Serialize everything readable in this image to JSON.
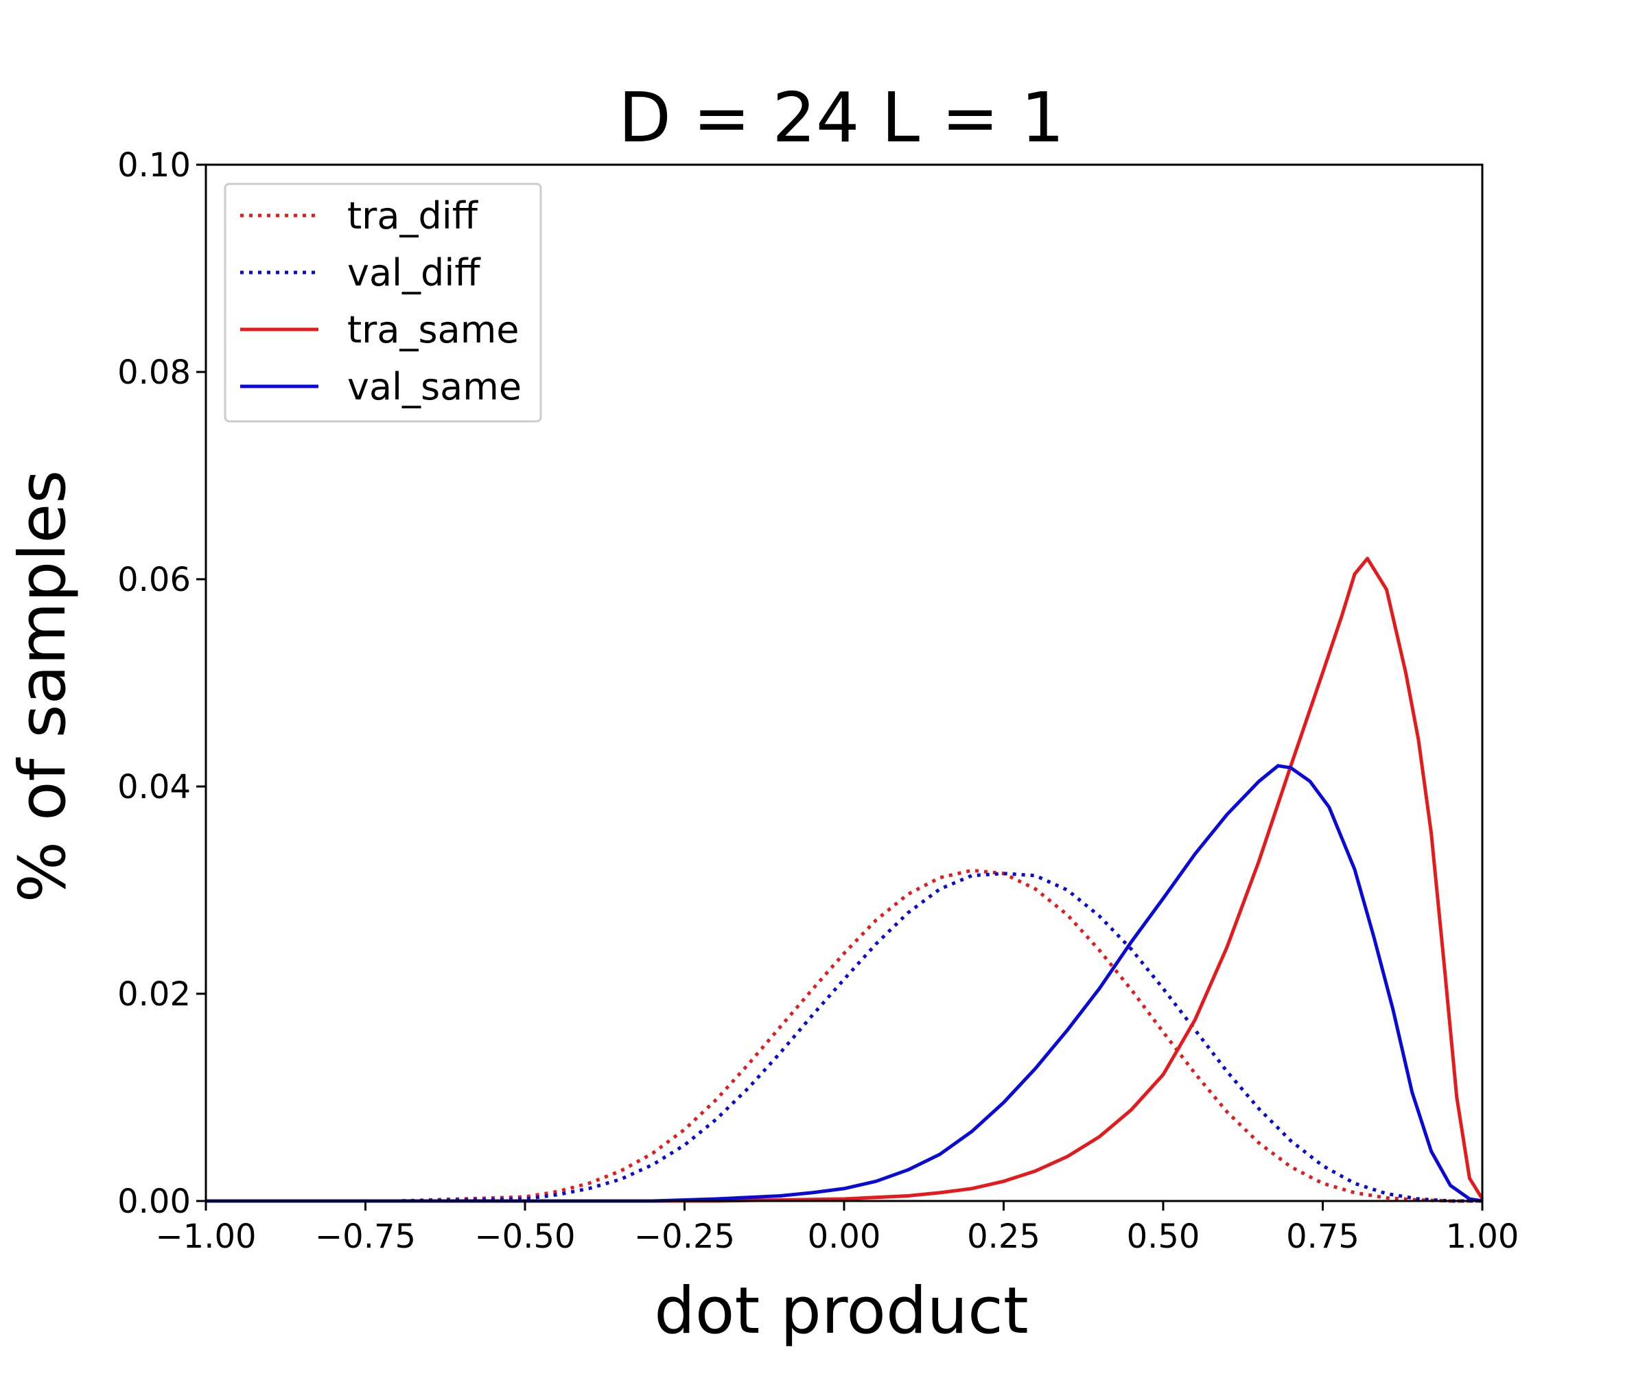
{
  "chart_data": {
    "type": "line",
    "title": "D = 24   L = 1",
    "xlabel": "dot product",
    "ylabel": "% of samples",
    "xlim": [
      -1.0,
      1.0
    ],
    "ylim": [
      0.0,
      0.1
    ],
    "xticks": [
      -1.0,
      -0.75,
      -0.5,
      -0.25,
      0.0,
      0.25,
      0.5,
      0.75,
      1.0
    ],
    "xtick_labels": [
      "−1.00",
      "−0.75",
      "−0.50",
      "−0.25",
      "0.00",
      "0.25",
      "0.50",
      "0.75",
      "1.00"
    ],
    "yticks": [
      0.0,
      0.02,
      0.04,
      0.06,
      0.08,
      0.1
    ],
    "ytick_labels": [
      "0.00",
      "0.02",
      "0.04",
      "0.06",
      "0.08",
      "0.10"
    ],
    "grid": false,
    "legend_position": "top-left",
    "series": [
      {
        "name": "tra_diff",
        "color": "#e41a1c",
        "style": "dotted",
        "x": [
          -1.0,
          -0.7,
          -0.5,
          -0.45,
          -0.4,
          -0.35,
          -0.3,
          -0.25,
          -0.2,
          -0.15,
          -0.1,
          -0.05,
          0.0,
          0.05,
          0.1,
          0.15,
          0.2,
          0.25,
          0.3,
          0.35,
          0.4,
          0.45,
          0.5,
          0.55,
          0.6,
          0.65,
          0.7,
          0.75,
          0.8,
          0.85,
          0.9,
          0.95,
          1.0
        ],
        "values": [
          0.0,
          0.0,
          0.0004,
          0.0009,
          0.0017,
          0.0029,
          0.0046,
          0.0069,
          0.0098,
          0.0132,
          0.0168,
          0.0204,
          0.0239,
          0.0271,
          0.0296,
          0.0312,
          0.0319,
          0.0316,
          0.0301,
          0.0276,
          0.0242,
          0.0204,
          0.0163,
          0.0123,
          0.0086,
          0.0056,
          0.0033,
          0.0017,
          0.0008,
          0.0003,
          0.0001,
          0.0,
          0.0
        ]
      },
      {
        "name": "val_diff",
        "color": "#0a0ad8",
        "style": "dotted",
        "x": [
          -1.0,
          -0.7,
          -0.5,
          -0.45,
          -0.4,
          -0.35,
          -0.3,
          -0.25,
          -0.2,
          -0.15,
          -0.1,
          -0.05,
          0.0,
          0.05,
          0.1,
          0.15,
          0.2,
          0.25,
          0.3,
          0.35,
          0.4,
          0.45,
          0.5,
          0.55,
          0.6,
          0.65,
          0.7,
          0.75,
          0.8,
          0.85,
          0.9,
          0.95,
          1.0
        ],
        "values": [
          0.0,
          0.0,
          0.0002,
          0.0006,
          0.0012,
          0.0021,
          0.0035,
          0.0054,
          0.0079,
          0.0109,
          0.0143,
          0.0179,
          0.0214,
          0.0248,
          0.0278,
          0.0301,
          0.0314,
          0.0316,
          0.0314,
          0.03,
          0.0275,
          0.0243,
          0.0205,
          0.0165,
          0.0125,
          0.0089,
          0.0058,
          0.0034,
          0.0017,
          0.0007,
          0.0002,
          0.0,
          0.0
        ]
      },
      {
        "name": "tra_same",
        "color": "#e41a1c",
        "style": "solid",
        "x": [
          -1.0,
          -0.2,
          0.0,
          0.1,
          0.15,
          0.2,
          0.25,
          0.3,
          0.35,
          0.4,
          0.45,
          0.5,
          0.55,
          0.6,
          0.65,
          0.7,
          0.75,
          0.78,
          0.8,
          0.82,
          0.85,
          0.88,
          0.9,
          0.92,
          0.94,
          0.96,
          0.98,
          1.0
        ],
        "values": [
          0.0,
          0.0,
          0.0002,
          0.0005,
          0.0008,
          0.0012,
          0.0019,
          0.0029,
          0.0043,
          0.0062,
          0.0088,
          0.0122,
          0.0175,
          0.0245,
          0.0328,
          0.042,
          0.051,
          0.0565,
          0.0605,
          0.062,
          0.059,
          0.051,
          0.0445,
          0.0355,
          0.023,
          0.01,
          0.0022,
          0.0002
        ]
      },
      {
        "name": "val_same",
        "color": "#0a0ad8",
        "style": "solid",
        "x": [
          -1.0,
          -0.3,
          -0.2,
          -0.1,
          -0.05,
          0.0,
          0.05,
          0.1,
          0.15,
          0.2,
          0.25,
          0.3,
          0.35,
          0.4,
          0.45,
          0.5,
          0.55,
          0.6,
          0.65,
          0.68,
          0.7,
          0.73,
          0.76,
          0.8,
          0.83,
          0.86,
          0.89,
          0.92,
          0.95,
          0.98,
          1.0
        ],
        "values": [
          0.0,
          0.0,
          0.0002,
          0.0005,
          0.0008,
          0.0012,
          0.0019,
          0.003,
          0.0045,
          0.0067,
          0.0095,
          0.0128,
          0.0165,
          0.0205,
          0.025,
          0.0292,
          0.0335,
          0.0373,
          0.0405,
          0.042,
          0.0418,
          0.0405,
          0.038,
          0.032,
          0.0255,
          0.0185,
          0.0105,
          0.0048,
          0.0015,
          0.0002,
          0.0
        ]
      }
    ]
  }
}
